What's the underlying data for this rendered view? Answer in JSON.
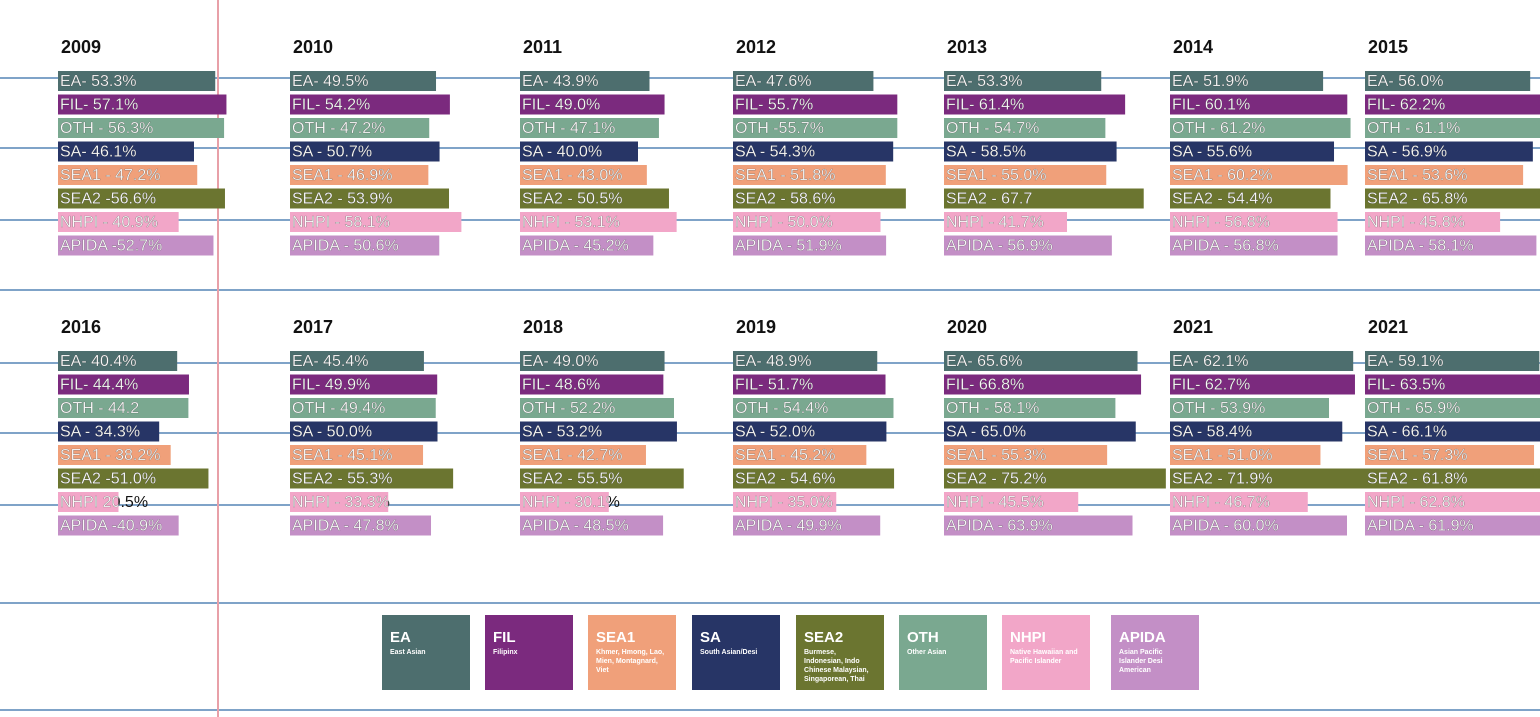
{
  "chart_data": [
    {
      "type": "bar",
      "title": "2009",
      "values": [
        53.3,
        57.1,
        56.3,
        46.1,
        47.2,
        56.6,
        40.9,
        52.7
      ],
      "value_labels": [
        "EA- 53.3%",
        "FIL- 57.1%",
        "OTH - 56.3%",
        "SA- 46.1%",
        "SEA1 - 47.2%",
        "SEA2 -56.6%",
        "NHPI - 40.9%",
        "APIDA -52.7%"
      ],
      "xlim": [
        0,
        100
      ]
    },
    {
      "type": "bar",
      "title": "2010",
      "values": [
        49.5,
        54.2,
        47.2,
        50.7,
        46.9,
        53.9,
        58.1,
        50.6
      ],
      "value_labels": [
        "EA- 49.5%",
        "FIL- 54.2%",
        "OTH - 47.2%",
        "SA - 50.7%",
        "SEA1 - 46.9%",
        "SEA2 - 53.9%",
        "NHPI - 58.1%",
        "APIDA - 50.6%"
      ],
      "xlim": [
        0,
        100
      ]
    },
    {
      "type": "bar",
      "title": "2011",
      "values": [
        43.9,
        49.0,
        47.1,
        40.0,
        43.0,
        50.5,
        53.1,
        45.2
      ],
      "value_labels": [
        "EA- 43.9%",
        "FIL- 49.0%",
        "OTH - 47.1%",
        "SA - 40.0%",
        "SEA1 - 43.0%",
        "SEA2 - 50.5%",
        "NHPI - 53.1%",
        "APIDA - 45.2%"
      ],
      "xlim": [
        0,
        100
      ]
    },
    {
      "type": "bar",
      "title": "2012",
      "values": [
        47.6,
        55.7,
        55.7,
        54.3,
        51.8,
        58.6,
        50.0,
        51.9
      ],
      "value_labels": [
        "EA- 47.6%",
        "FIL- 55.7%",
        "OTH -55.7%",
        "SA - 54.3%",
        "SEA1 - 51.8%",
        "SEA2 - 58.6%",
        "NHPI - 50.0%",
        "APIDA - 51.9%"
      ],
      "xlim": [
        0,
        100
      ]
    },
    {
      "type": "bar",
      "title": "2013",
      "values": [
        53.3,
        61.4,
        54.7,
        58.5,
        55.0,
        67.7,
        41.7,
        56.9
      ],
      "value_labels": [
        "EA- 53.3%",
        "FIL- 61.4%",
        "OTH - 54.7%",
        "SA - 58.5%",
        "SEA1 - 55.0%",
        "SEA2 - 67.7",
        "NHPI - 41.7%",
        "APIDA - 56.9%"
      ],
      "xlim": [
        0,
        100
      ]
    },
    {
      "type": "bar",
      "title": "2014",
      "values": [
        51.9,
        60.1,
        61.2,
        55.6,
        60.2,
        54.4,
        56.8,
        56.8
      ],
      "value_labels": [
        "EA- 51.9%",
        "FIL- 60.1%",
        "OTH - 61.2%",
        "SA - 55.6%",
        "SEA1 - 60.2%",
        "SEA2 - 54.4%",
        "NHPI - 56.8%",
        "APIDA - 56.8%"
      ],
      "xlim": [
        0,
        100
      ]
    },
    {
      "type": "bar",
      "title": "2015",
      "values": [
        56.0,
        62.2,
        61.1,
        56.9,
        53.6,
        65.8,
        45.8,
        58.1
      ],
      "value_labels": [
        "EA- 56.0%",
        "FIL- 62.2%",
        "OTH - 61.1%",
        "SA - 56.9%",
        "SEA1 - 53.6%",
        "SEA2 - 65.8%",
        "NHPI - 45.8%",
        "APIDA - 58.1%"
      ],
      "xlim": [
        0,
        100
      ]
    },
    {
      "type": "bar",
      "title": "2016",
      "values": [
        40.4,
        44.4,
        44.2,
        34.3,
        38.2,
        51.0,
        20.5,
        40.9
      ],
      "value_labels": [
        "EA- 40.4%",
        "FIL- 44.4%",
        "OTH - 44.2",
        "SA - 34.3%",
        "SEA1 - 38.2%",
        "SEA2 -51.0%",
        "NHPI  20.5%",
        "APIDA -40.9%"
      ],
      "xlim": [
        0,
        100
      ]
    },
    {
      "type": "bar",
      "title": "2017",
      "values": [
        45.4,
        49.9,
        49.4,
        50.0,
        45.1,
        55.3,
        33.3,
        47.8
      ],
      "value_labels": [
        "EA- 45.4%",
        "FIL- 49.9%",
        "OTH - 49.4%",
        "SA - 50.0%",
        "SEA1 - 45.1%",
        "SEA2 - 55.3%",
        "NHPI - 33.3%",
        "APIDA - 47.8%"
      ],
      "xlim": [
        0,
        100
      ]
    },
    {
      "type": "bar",
      "title": "2018",
      "values": [
        49.0,
        48.6,
        52.2,
        53.2,
        42.7,
        55.5,
        30.1,
        48.5
      ],
      "value_labels": [
        "EA- 49.0%",
        "FIL- 48.6%",
        "OTH - 52.2%",
        "SA - 53.2%",
        "SEA1 - 42.7%",
        "SEA2 - 55.5%",
        "NHPI - 30.1%",
        "APIDA - 48.5%"
      ],
      "xlim": [
        0,
        100
      ]
    },
    {
      "type": "bar",
      "title": "2019",
      "values": [
        48.9,
        51.7,
        54.4,
        52.0,
        45.2,
        54.6,
        35.0,
        49.9
      ],
      "value_labels": [
        "EA- 48.9%",
        "FIL- 51.7%",
        "OTH - 54.4%",
        "SA - 52.0%",
        "SEA1 - 45.2%",
        "SEA2 - 54.6%",
        "NHPI - 35.0%",
        "APIDA - 49.9%"
      ],
      "xlim": [
        0,
        100
      ]
    },
    {
      "type": "bar",
      "title": "2020",
      "values": [
        65.6,
        66.8,
        58.1,
        65.0,
        55.3,
        75.2,
        45.5,
        63.9
      ],
      "value_labels": [
        "EA- 65.6%",
        "FIL- 66.8%",
        "OTH - 58.1%",
        "SA - 65.0%",
        "SEA1 - 55.3%",
        "SEA2 - 75.2%",
        "NHPI - 45.5%",
        "APIDA - 63.9%"
      ],
      "xlim": [
        0,
        100
      ]
    },
    {
      "type": "bar",
      "title": "2021",
      "values": [
        62.1,
        62.7,
        53.9,
        58.4,
        51.0,
        71.9,
        46.7,
        60.0
      ],
      "value_labels": [
        "EA- 62.1%",
        "FIL- 62.7%",
        "OTH - 53.9%",
        "SA - 58.4%",
        "SEA1 - 51.0%",
        "SEA2 - 71.9%",
        "NHPI - 46.7%",
        "APIDA - 60.0%"
      ],
      "xlim": [
        0,
        100
      ]
    },
    {
      "type": "bar",
      "title": "2021",
      "values": [
        59.1,
        63.5,
        65.9,
        66.1,
        57.3,
        61.8,
        62.8,
        61.9
      ],
      "value_labels": [
        "EA- 59.1%",
        "FIL- 63.5%",
        "OTH - 65.9%",
        "SA - 66.1%",
        "SEA1 - 57.3%",
        "SEA2 - 61.8%",
        "NHPI - 62.8%",
        "APIDA - 61.9%"
      ],
      "xlim": [
        0,
        100
      ]
    }
  ],
  "bar_colors": [
    "#4d6e6e",
    "#7b2a7e",
    "#7aa890",
    "#273566",
    "#f0a07a",
    "#6b7530",
    "#f2a6c8",
    "#c38fc6"
  ],
  "legend": [
    {
      "name": "EA",
      "description": "East Asian",
      "color": "#4d6e6e"
    },
    {
      "name": "FIL",
      "description": "Filipinx",
      "color": "#7b2a7e"
    },
    {
      "name": "SEA1",
      "description": "Khmer, Hmong, Lao, Mien, Montagnard, Viet",
      "color": "#f0a07a"
    },
    {
      "name": "SA",
      "description": "South Asian/Desi",
      "color": "#273566"
    },
    {
      "name": "SEA2",
      "description": "Burmese, Indonesian, Indo Chinese Malaysian, Singaporean, Thai",
      "color": "#6b7530"
    },
    {
      "name": "OTH",
      "description": "Other Asian",
      "color": "#7aa890"
    },
    {
      "name": "NHPI",
      "description": "Native Hawaiian and Pacific Islander",
      "color": "#f2a6c8"
    },
    {
      "name": "APIDA",
      "description": "Asian Pacific Islander Desi American",
      "color": "#c38fc6"
    }
  ]
}
